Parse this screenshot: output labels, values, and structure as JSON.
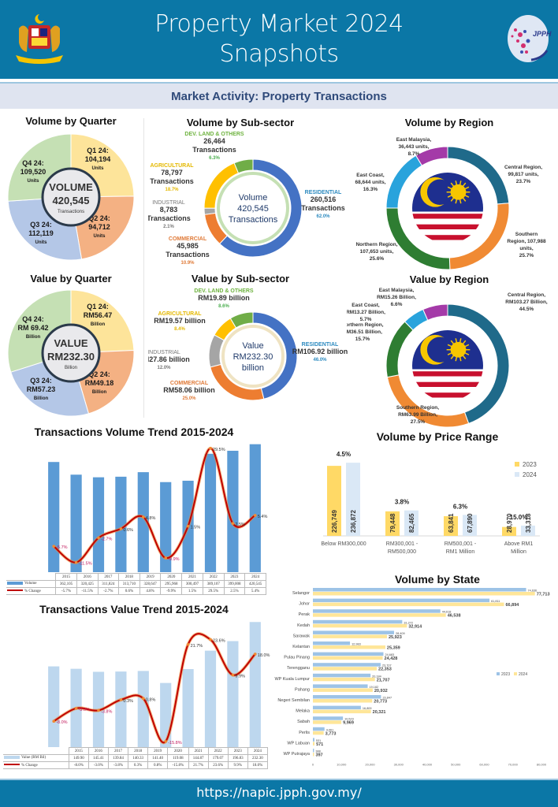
{
  "header": {
    "title_line1": "Property Market 2024",
    "title_line2": "Snapshots",
    "left_logo": "malaysia-coat-of-arms-icon",
    "right_logo": "jpph-globe-logo-icon"
  },
  "subheader": {
    "title": "Market Activity: Property Transactions"
  },
  "footer": {
    "url": "https://napic.jpph.gov.my/"
  },
  "colors": {
    "brand": "#0b77a6",
    "q1": "#fde49a",
    "q2": "#f4b183",
    "q3": "#b4c7e7",
    "q4": "#c5e0b4",
    "residential": "#4472c4",
    "commercial": "#ed7d31",
    "industrial": "#a5a5a5",
    "agricultural": "#ffc000",
    "dev_land": "#70ad47",
    "central": "#1f6a8a",
    "southern": "#f08a33",
    "northern": "#2e7d32",
    "east_coast": "#29a3dc",
    "east_malaysia": "#a43aa8",
    "bar_blue": "#5b9bd5",
    "bar_light": "#bdd7ee",
    "line_red": "#c00000",
    "price_2023": "#ffd966",
    "price_2024": "#dae8f6"
  },
  "chart_data": [
    {
      "id": "volume_by_quarter",
      "type": "pie",
      "title": "Volume by Quarter",
      "center": {
        "line1": "VOLUME",
        "line2": "420,545",
        "line3": "Transactions"
      },
      "slices": [
        {
          "label": "Q1 24:",
          "value": 104194,
          "value_text": "104,194",
          "unit": "Units"
        },
        {
          "label": "Q2 24:",
          "value": 94712,
          "value_text": "94,712",
          "unit": "Units"
        },
        {
          "label": "Q3 24:",
          "value": 112119,
          "value_text": "112,119",
          "unit": "Units"
        },
        {
          "label": "Q4 24:",
          "value": 109520,
          "value_text": "109,520",
          "unit": "Units"
        }
      ]
    },
    {
      "id": "value_by_quarter",
      "type": "pie",
      "title": "Value by Quarter",
      "center": {
        "line1": "VALUE",
        "line2": "RM232.30",
        "line3": "Billion"
      },
      "slices": [
        {
          "label": "Q1 24:",
          "value": 56.47,
          "value_text": "RM56.47",
          "unit": "Billion"
        },
        {
          "label": "Q2 24:",
          "value": 49.18,
          "value_text": "RM49.18",
          "unit": "Billion"
        },
        {
          "label": "Q3 24:",
          "value": 57.23,
          "value_text": "RM57.23",
          "unit": "Billion"
        },
        {
          "label": "Q4 24:",
          "value": 69.42,
          "value_text": "RM 69.42",
          "unit": "Billion"
        }
      ]
    },
    {
      "id": "volume_by_subsector",
      "type": "pie",
      "title": "Volume by Sub-sector",
      "center": {
        "line1": "Volume",
        "line2": "420,545",
        "line3": "Transactions"
      },
      "slices": [
        {
          "name": "RESIDENTIAL",
          "value": 260516,
          "text1": "260,516",
          "text2": "Transactions",
          "pct": "62.0%"
        },
        {
          "name": "COMMERCIAL",
          "value": 45985,
          "text1": "45,985",
          "text2": "Transactions",
          "pct": "10.9%"
        },
        {
          "name": "INDUSTRIAL",
          "value": 8783,
          "text1": "8,783",
          "text2": "Transactions",
          "pct": "2.1%"
        },
        {
          "name": "AGRICULTURAL",
          "value": 78797,
          "text1": "78,797",
          "text2": "Transactions",
          "pct": "18.7%"
        },
        {
          "name": "DEV. LAND & OTHERS",
          "value": 26464,
          "text1": "26,464",
          "text2": "Transactions",
          "pct": "6.3%"
        }
      ]
    },
    {
      "id": "value_by_subsector",
      "type": "pie",
      "title": "Value by Sub-sector",
      "center": {
        "line1": "Value",
        "line2": "RM232.30",
        "line3": "billion"
      },
      "slices": [
        {
          "name": "RESIDENTIAL",
          "value": 106.92,
          "text1": "RM106.92 billion",
          "pct": "46.0%"
        },
        {
          "name": "COMMERCIAL",
          "value": 58.06,
          "text1": "RM58.06 billion",
          "pct": "25.0%"
        },
        {
          "name": "INDUSTRIAL",
          "value": 27.86,
          "text1": "RM27.86 billion",
          "pct": "12.0%"
        },
        {
          "name": "AGRICULTURAL",
          "value": 19.57,
          "text1": "RM19.57 billion",
          "pct": "8.4%"
        },
        {
          "name": "DEV. LAND & OTHERS",
          "value": 19.89,
          "text1": "RM19.89 billion",
          "pct": "8.6%"
        }
      ]
    },
    {
      "id": "volume_by_region",
      "type": "pie",
      "title": "Volume by Region",
      "slices": [
        {
          "name": "Central Region,",
          "value": 99817,
          "text1": "99,817 units,",
          "pct": "23.7%"
        },
        {
          "name": "Southern Region,",
          "value": 107988,
          "text1": "107,988 units,",
          "pct": "25.7%"
        },
        {
          "name": "Northern Region,",
          "value": 107653,
          "text1": "107,653 units,",
          "pct": "25.6%"
        },
        {
          "name": "East Coast,",
          "value": 68644,
          "text1": "68,644 units,",
          "pct": "16.3%"
        },
        {
          "name": "East Malaysia,",
          "value": 36443,
          "text1": "36,443 units,",
          "pct": "8.7%"
        }
      ]
    },
    {
      "id": "value_by_region",
      "type": "pie",
      "title": "Value by Region",
      "slices": [
        {
          "name": "Central Region,",
          "value": 103.27,
          "text1": "RM103.27 Billion,",
          "pct": "44.5%"
        },
        {
          "name": "Southern Region,",
          "value": 63.99,
          "text1": "RM63.99 Billion,",
          "pct": "27.5%"
        },
        {
          "name": "Northern Region,",
          "value": 36.51,
          "text1": "RM36.51 Billion,",
          "pct": "15.7%"
        },
        {
          "name": "East Coast,",
          "value": 13.27,
          "text1": "RM13.27 Billion,",
          "pct": "5.7%"
        },
        {
          "name": "East Malaysia,",
          "value": 15.26,
          "text1": "RM15.26 Billion,",
          "pct": "6.6%"
        }
      ]
    },
    {
      "id": "volume_trend",
      "type": "bar",
      "title": "Transactions Volume Trend 2015-2024",
      "categories": [
        "2015",
        "2016",
        "2017",
        "2018",
        "2019",
        "2020",
        "2021",
        "2022",
        "2023",
        "2024"
      ],
      "series": [
        {
          "name": "Volume",
          "values": [
            362105,
            320425,
            311824,
            313710,
            328647,
            295968,
            300497,
            389107,
            399008,
            420545
          ],
          "labels": [
            "362,105",
            "320,425",
            "311,824",
            "313,710",
            "328,647",
            "295,968",
            "300,497",
            "389,107",
            "399,008",
            "420,545"
          ]
        },
        {
          "name": "% Change",
          "type": "line",
          "values": [
            -5.7,
            -11.5,
            -2.7,
            0.6,
            4.8,
            -9.9,
            1.5,
            29.5,
            2.5,
            5.4
          ],
          "labels": [
            "-5.7%",
            "-11.5%",
            "-2.7%",
            "0.6%",
            "4.8%",
            "-9.9%",
            "1.5%",
            "29.5%",
            "2.5%",
            "5.4%"
          ]
        }
      ],
      "ylim": [
        0,
        430000
      ],
      "y2lim": [
        -15,
        32
      ]
    },
    {
      "id": "value_trend",
      "type": "bar",
      "title": "Transactions Value Trend 2015-2024",
      "categories": [
        "2015",
        "2016",
        "2017",
        "2018",
        "2019",
        "2020",
        "2021",
        "2022",
        "2023",
        "2024"
      ],
      "series": [
        {
          "name": "Value (RM Bil)",
          "values": [
            149.9,
            145.41,
            139.84,
            140.33,
            141.4,
            119.08,
            144.87,
            179.07,
            196.83,
            232.3
          ],
          "labels": [
            "149.90",
            "145.41",
            "139.84",
            "140.33",
            "141.40",
            "119.08",
            "144.87",
            "179.07",
            "196.83",
            "232.30"
          ]
        },
        {
          "name": "% Change",
          "type": "line",
          "values": [
            -8.0,
            -3.0,
            -3.8,
            0.3,
            0.8,
            -15.8,
            21.7,
            23.6,
            9.9,
            18.0
          ],
          "labels": [
            "-8.0%",
            "-3.0%",
            "-3.8%",
            "0.3%",
            "0.8%",
            "-15.8%",
            "21.7%",
            "23.6%",
            "9.9%",
            "18.0%"
          ]
        }
      ],
      "ylim": [
        0,
        240
      ],
      "y2lim": [
        -18,
        32
      ]
    },
    {
      "id": "volume_by_price_range",
      "type": "bar",
      "title": "Volume by Price Range",
      "categories": [
        "Below RM300,000",
        "RM300,001 - RM500,000",
        "RM500,001 - RM1 Million",
        "Above RM1 Million"
      ],
      "series": [
        {
          "name": "2023",
          "values": [
            226749,
            79448,
            63841,
            28970
          ],
          "labels": [
            "226,749",
            "79,448",
            "63,841",
            "28,970"
          ]
        },
        {
          "name": "2024",
          "values": [
            236872,
            82465,
            67890,
            33318
          ],
          "labels": [
            "236,872",
            "82,465",
            "67,890",
            "33,318"
          ]
        }
      ],
      "growth_labels": [
        "4.5%",
        "3.8%",
        "6.3%",
        "15.0%"
      ],
      "legend": "top-right",
      "ylim": [
        0,
        250000
      ]
    },
    {
      "id": "volume_by_state",
      "type": "bar",
      "orientation": "horizontal",
      "title": "Volume by State",
      "categories": [
        "Selangor",
        "Johor",
        "Perak",
        "Kedah",
        "Sarawak",
        "Kelantan",
        "Pulau Pinang",
        "Terengganu",
        "WP Kuala Lumpur",
        "Pahang",
        "Negeri Sembilan",
        "Melaka",
        "Sabah",
        "Perlis",
        "WP Labuan",
        "WP Putrajaya"
      ],
      "series": [
        {
          "name": "2023",
          "values": [
            74636,
            61811,
            44618,
            31272,
            28409,
            12983,
            24683,
            23707,
            20184,
            19182,
            23847,
            16809,
            10523,
            4061,
            531,
            388
          ],
          "labels": [
            "74,636",
            "61,811",
            "44,618",
            "31,272",
            "28,409",
            "12,983",
            "24,683",
            "23,707",
            "20,184",
            "19,182",
            "23,847",
            "16,809",
            "10,523",
            "4,061",
            "531",
            "388"
          ]
        },
        {
          "name": "2024",
          "values": [
            77713,
            66894,
            46538,
            32914,
            25923,
            25359,
            24428,
            22353,
            21707,
            20932,
            20773,
            20321,
            9969,
            3773,
            571,
            397
          ],
          "labels": [
            "77,713",
            "66,894",
            "46,538",
            "32,914",
            "25,923",
            "25,359",
            "24,428",
            "22,353",
            "21,707",
            "20,932",
            "20,773",
            "20,321",
            "9,969",
            "3,773",
            "571",
            "397"
          ]
        }
      ],
      "xticks": [
        "0",
        "10,000",
        "20,000",
        "30,000",
        "40,000",
        "50,000",
        "60,000",
        "70,000",
        "80,000"
      ],
      "xlim": [
        0,
        80000
      ],
      "legend": "right"
    }
  ]
}
